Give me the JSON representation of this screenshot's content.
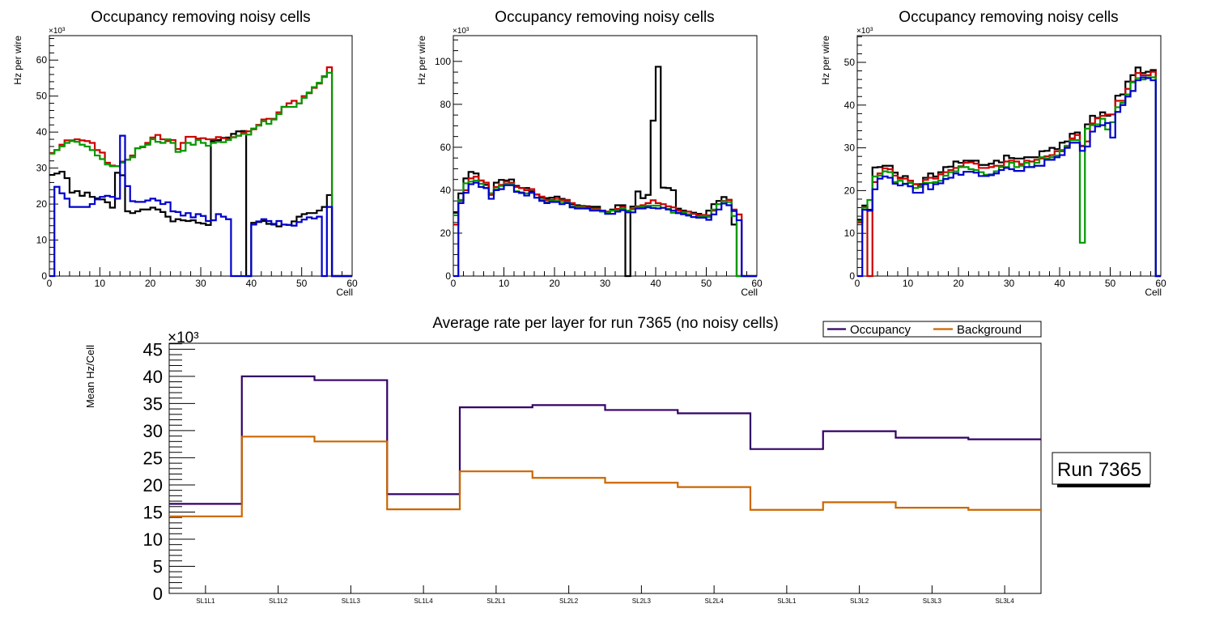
{
  "annotation": {
    "run_label": "Run 7365"
  },
  "chart_data": [
    {
      "type": "line",
      "style": "step-histogram",
      "title": "Occupancy removing noisy cells",
      "xlabel": "Cell",
      "ylabel": "Hz per wire",
      "y_multiplier": "×10³",
      "xlim": [
        0,
        60
      ],
      "ylim": [
        0,
        66.8
      ],
      "bin_width": 1,
      "xticks": [
        0,
        10,
        20,
        30,
        40,
        50,
        60
      ],
      "yticks": [
        0,
        10,
        20,
        30,
        40,
        50,
        60
      ],
      "grid": false,
      "series": [
        {
          "name": "black",
          "color": "#000000",
          "values": [
            28.1,
            28.5,
            29.0,
            27.2,
            23.2,
            23.6,
            22.3,
            23.2,
            22.0,
            21.6,
            21.3,
            20.5,
            19.0,
            28.7,
            28.0,
            18.0,
            17.5,
            18.0,
            18.5,
            18.5,
            19.0,
            18.5,
            17.8,
            16.5,
            15.2,
            15.8,
            15.5,
            15.3,
            15.5,
            14.8,
            14.6,
            14.2,
            37.5,
            37.8,
            38.4,
            38.5,
            39.5,
            40.2,
            40.3,
            0,
            14.8,
            15.0,
            15.3,
            14.5,
            14.3,
            13.8,
            14.3,
            14.2,
            15.2,
            16.5,
            17.2,
            17.5,
            17.5,
            18.2,
            19.2,
            22.5,
            0,
            0,
            0,
            0
          ]
        },
        {
          "name": "red",
          "color": "#cc0000",
          "values": [
            34.2,
            35.0,
            36.5,
            37.7,
            37.7,
            38.0,
            37.7,
            37.5,
            37.0,
            35.0,
            34.3,
            31.5,
            30.7,
            30.5,
            31.8,
            32.3,
            33.5,
            35.5,
            35.8,
            37.0,
            38.5,
            39.2,
            38.0,
            37.5,
            37.8,
            35.3,
            37.0,
            38.7,
            38.7,
            38.2,
            38.3,
            38.0,
            38.0,
            38.6,
            38.3,
            38.0,
            38.6,
            39.0,
            39.8,
            40.2,
            40.8,
            42.0,
            43.5,
            43.7,
            43.7,
            45.5,
            47.0,
            48.0,
            48.7,
            48.0,
            50.0,
            50.8,
            52.3,
            53.5,
            55.5,
            58.0,
            0,
            0,
            0,
            0
          ]
        },
        {
          "name": "green",
          "color": "#009900",
          "values": [
            34.0,
            35.0,
            36.0,
            37.0,
            37.5,
            37.3,
            36.5,
            36.0,
            35.0,
            33.5,
            32.5,
            31.0,
            30.5,
            30.5,
            31.5,
            32.3,
            33.0,
            35.5,
            36.0,
            36.5,
            38.0,
            37.3,
            37.0,
            38.0,
            37.0,
            34.5,
            34.8,
            37.0,
            36.5,
            37.8,
            37.0,
            36.2,
            37.0,
            37.3,
            37.2,
            37.8,
            38.5,
            39.0,
            39.5,
            39.3,
            41.0,
            41.8,
            43.0,
            42.3,
            43.5,
            45.0,
            47.0,
            47.0,
            47.0,
            48.0,
            49.5,
            51.0,
            52.5,
            53.7,
            55.3,
            56.5,
            0,
            0,
            0,
            0
          ]
        },
        {
          "name": "blue",
          "color": "#0000cc",
          "values": [
            0,
            24.8,
            23.0,
            21.5,
            19.2,
            19.2,
            19.2,
            19.2,
            20.0,
            21.3,
            22.0,
            22.3,
            22.0,
            21.5,
            39.0,
            25.0,
            20.8,
            20.6,
            20.6,
            21.0,
            21.5,
            21.0,
            20.0,
            20.5,
            18.0,
            17.8,
            16.8,
            17.5,
            16.3,
            17.2,
            16.7,
            15.3,
            15.5,
            17.2,
            16.5,
            15.8,
            0,
            0,
            0,
            0,
            14.3,
            15.2,
            15.8,
            15.3,
            14.5,
            15.3,
            14.3,
            14.2,
            14.0,
            15.0,
            15.7,
            16.3,
            16.0,
            16.5,
            0,
            19.2,
            0,
            0,
            0,
            0
          ]
        }
      ]
    },
    {
      "type": "line",
      "style": "step-histogram",
      "title": "Occupancy removing noisy cells",
      "xlabel": "Cell",
      "ylabel": "Hz per wire",
      "y_multiplier": "×10³",
      "xlim": [
        0,
        60
      ],
      "ylim": [
        0,
        112
      ],
      "bin_width": 1,
      "xticks": [
        0,
        10,
        20,
        30,
        40,
        50,
        60
      ],
      "yticks": [
        0,
        20,
        40,
        60,
        80,
        100
      ],
      "grid": false,
      "series": [
        {
          "name": "black",
          "color": "#000000",
          "values": [
            29.5,
            38.5,
            45.5,
            48.5,
            47.8,
            44.5,
            42.5,
            38.5,
            43.5,
            44.8,
            44.5,
            45.0,
            42.0,
            41.0,
            41.0,
            39.5,
            38.0,
            36.5,
            36.3,
            36.5,
            37.0,
            36.0,
            35.3,
            33.5,
            33.0,
            32.7,
            32.5,
            32.3,
            32.3,
            30.5,
            30.0,
            31.0,
            33.0,
            33.0,
            0,
            32.4,
            39.4,
            36.3,
            37.8,
            72.4,
            97.5,
            41.2,
            41.0,
            40.0,
            31.4,
            30.5,
            30.0,
            29.5,
            29.0,
            28.0,
            30.5,
            33.5,
            35.0,
            36.8,
            35.5,
            24.0,
            0,
            0,
            0,
            0
          ]
        },
        {
          "name": "red",
          "color": "#cc0000",
          "values": [
            24.0,
            35.0,
            40.0,
            45.5,
            46.3,
            44.5,
            43.5,
            37.8,
            41.5,
            42.5,
            44.0,
            43.5,
            41.5,
            41.0,
            40.0,
            40.5,
            38.0,
            37.0,
            35.5,
            35.5,
            36.0,
            35.5,
            35.5,
            34.0,
            32.5,
            32.5,
            32.0,
            31.5,
            31.5,
            30.5,
            30.0,
            30.5,
            31.3,
            32.2,
            30.5,
            31.5,
            32.5,
            33.0,
            34.0,
            35.3,
            34.0,
            33.5,
            32.5,
            32.0,
            30.5,
            30.0,
            30.0,
            29.0,
            28.5,
            28.5,
            28.3,
            30.5,
            33.5,
            35.0,
            35.5,
            31.0,
            28.7,
            0,
            0,
            0
          ]
        },
        {
          "name": "green",
          "color": "#009900",
          "values": [
            28.3,
            35.5,
            43.2,
            44.0,
            44.5,
            43.0,
            41.0,
            38.5,
            40.5,
            42.0,
            43.0,
            43.0,
            39.5,
            39.0,
            38.5,
            38.7,
            36.5,
            35.5,
            34.5,
            35.0,
            35.0,
            34.5,
            34.5,
            32.5,
            32.0,
            32.0,
            31.5,
            31.0,
            31.0,
            30.0,
            29.5,
            30.5,
            30.5,
            31.3,
            30.5,
            31.0,
            32.0,
            32.3,
            32.8,
            32.8,
            32.8,
            31.8,
            31.3,
            29.5,
            29.5,
            29.5,
            28.8,
            27.5,
            27.7,
            28.0,
            27.5,
            31.0,
            33.5,
            34.8,
            34.5,
            28.0,
            0,
            0,
            0,
            0
          ]
        },
        {
          "name": "blue",
          "color": "#0000cc",
          "values": [
            0,
            34.0,
            38.8,
            42.8,
            43.5,
            41.5,
            41.0,
            36.0,
            40.0,
            40.5,
            42.3,
            42.3,
            39.2,
            38.7,
            37.5,
            39.0,
            36.5,
            35.0,
            34.0,
            34.5,
            34.5,
            33.5,
            34.0,
            32.0,
            31.5,
            31.5,
            31.5,
            30.5,
            30.5,
            30.5,
            29.0,
            29.0,
            30.0,
            30.7,
            29.7,
            29.7,
            31.5,
            31.5,
            32.0,
            31.7,
            31.5,
            31.8,
            31.0,
            30.5,
            29.3,
            28.8,
            28.2,
            27.5,
            27.2,
            27.2,
            26.2,
            28.7,
            31.0,
            33.8,
            33.0,
            30.3,
            26.0,
            0,
            0,
            0
          ]
        }
      ]
    },
    {
      "type": "line",
      "style": "step-histogram",
      "title": "Occupancy removing noisy cells",
      "xlabel": "Cell",
      "ylabel": "Hz per wire",
      "y_multiplier": "×10³",
      "xlim": [
        0,
        60
      ],
      "ylim": [
        0,
        56.25
      ],
      "bin_width": 1,
      "xticks": [
        0,
        10,
        20,
        30,
        40,
        50,
        60
      ],
      "yticks": [
        0,
        10,
        20,
        30,
        40,
        50
      ],
      "grid": false,
      "series": [
        {
          "name": "black",
          "color": "#000000",
          "values": [
            13.2,
            16.5,
            15.5,
            25.4,
            25.5,
            25.8,
            25.8,
            24.2,
            23.0,
            23.4,
            22.3,
            21.5,
            21.5,
            23.0,
            24.0,
            23.3,
            24.3,
            25.5,
            25.6,
            26.8,
            26.5,
            27.0,
            27.0,
            27.0,
            26.0,
            26.0,
            26.3,
            27.0,
            26.6,
            28.2,
            27.6,
            27.5,
            27.5,
            27.8,
            27.8,
            27.8,
            29.2,
            29.3,
            30.0,
            29.7,
            31.2,
            31.5,
            33.3,
            33.6,
            30.4,
            35.5,
            37.5,
            37.0,
            38.3,
            37.5,
            37.8,
            42.2,
            42.5,
            45.5,
            47.0,
            48.8,
            47.5,
            47.8,
            48.2,
            0
          ]
        },
        {
          "name": "red",
          "color": "#cc0000",
          "values": [
            12.5,
            16.1,
            0,
            22.0,
            24.0,
            25.2,
            25.0,
            23.5,
            22.8,
            22.8,
            22.3,
            21.5,
            21.0,
            22.5,
            23.0,
            22.8,
            23.8,
            24.3,
            24.8,
            25.3,
            25.7,
            26.5,
            26.6,
            26.3,
            25.3,
            25.3,
            25.5,
            25.8,
            25.8,
            26.8,
            27.0,
            26.8,
            26.2,
            27.0,
            26.8,
            27.2,
            27.5,
            28.0,
            28.3,
            29.2,
            29.2,
            30.3,
            32.2,
            33.0,
            30.5,
            31.5,
            35.7,
            36.9,
            37.5,
            37.8,
            37.8,
            41.0,
            41.0,
            43.8,
            45.5,
            47.5,
            47.0,
            47.0,
            47.8,
            0
          ]
        },
        {
          "name": "green",
          "color": "#009900",
          "values": [
            12.8,
            16.0,
            17.8,
            23.3,
            23.5,
            24.5,
            24.3,
            22.0,
            22.3,
            21.5,
            21.8,
            20.6,
            20.8,
            21.8,
            21.8,
            22.0,
            22.3,
            23.5,
            24.3,
            24.5,
            25.5,
            25.5,
            25.0,
            24.8,
            24.3,
            23.7,
            23.8,
            24.5,
            25.5,
            25.5,
            26.5,
            25.5,
            25.8,
            26.5,
            25.5,
            26.5,
            27.8,
            27.5,
            27.8,
            28.2,
            29.5,
            30.5,
            31.8,
            31.8,
            7.8,
            34.5,
            35.3,
            35.5,
            36.8,
            34.3,
            36.0,
            39.5,
            40.5,
            42.5,
            45.3,
            46.3,
            46.0,
            46.5,
            46.5,
            0
          ]
        },
        {
          "name": "blue",
          "color": "#0000cc",
          "values": [
            0,
            15.5,
            15.3,
            20.3,
            22.8,
            23.3,
            23.0,
            21.6,
            21.2,
            21.6,
            21.0,
            19.5,
            19.5,
            21.5,
            20.3,
            21.5,
            21.7,
            22.7,
            23.0,
            24.0,
            23.7,
            24.4,
            24.4,
            24.2,
            23.4,
            23.4,
            23.6,
            24.0,
            24.8,
            25.3,
            25.0,
            24.6,
            24.6,
            25.5,
            25.5,
            25.8,
            25.8,
            27.2,
            27.2,
            27.8,
            28.3,
            30.0,
            31.2,
            31.2,
            29.3,
            30.3,
            33.8,
            35.0,
            35.3,
            35.8,
            32.4,
            38.4,
            40.0,
            42.0,
            43.3,
            45.8,
            46.5,
            46.3,
            45.8,
            0
          ]
        }
      ]
    },
    {
      "type": "line",
      "style": "step-histogram",
      "title": "Average rate per layer for run 7365 (no noisy cells)",
      "xlabel": "",
      "ylabel": "Mean Hz/Cell",
      "y_multiplier": "×10³",
      "categories": [
        "SL1L1",
        "SL1L2",
        "SL1L3",
        "SL1L4",
        "SL2L1",
        "SL2L2",
        "SL2L3",
        "SL2L4",
        "SL3L1",
        "SL3L2",
        "SL3L3",
        "SL3L4"
      ],
      "ylim": [
        0,
        46.1
      ],
      "yticks": [
        0,
        5,
        10,
        15,
        20,
        25,
        30,
        35,
        40,
        45
      ],
      "grid": false,
      "legend": {
        "position": "top-right",
        "entries": [
          "Occupancy",
          "Background"
        ]
      },
      "series": [
        {
          "name": "Occupancy",
          "color": "#330066",
          "values": [
            16.5,
            40.0,
            39.3,
            18.3,
            34.3,
            34.7,
            33.8,
            33.2,
            26.6,
            29.9,
            28.7,
            28.4
          ]
        },
        {
          "name": "Background",
          "color": "#cc6600",
          "values": [
            14.2,
            28.9,
            28.0,
            15.5,
            22.5,
            21.3,
            20.4,
            19.6,
            15.4,
            16.8,
            15.8,
            15.4
          ]
        }
      ]
    }
  ]
}
